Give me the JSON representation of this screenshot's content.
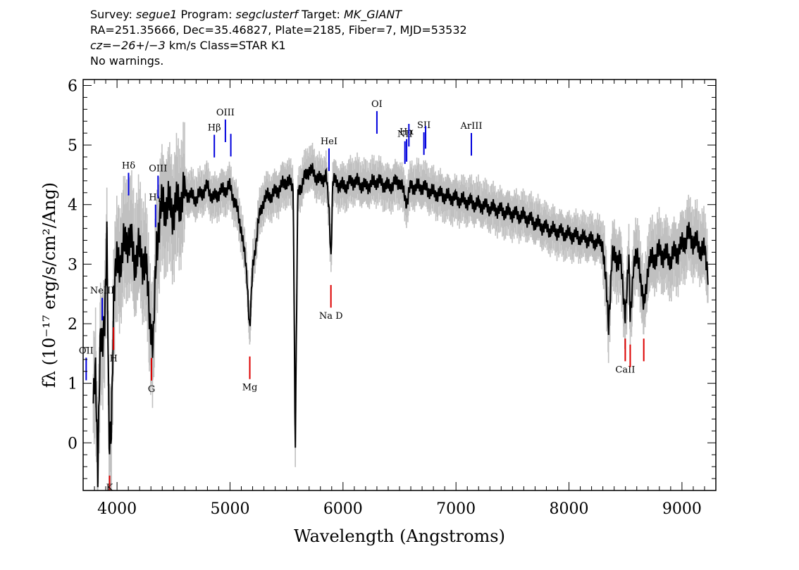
{
  "header": {
    "survey_prefix": "Survey: ",
    "survey": "segue1",
    "program_prefix": " Program: ",
    "program": "segclusterf",
    "target_prefix": " Target: ",
    "target": "MK_GIANT",
    "line2": "RA=251.35666, Dec=35.46827, Plate=2185, Fiber=7, MJD=53532",
    "cz_prefix": "cz=",
    "cz_value": "−26",
    "cz_pm": "+/−",
    "cz_err": "3",
    "cz_suffix": " km/s Class=STAR K1",
    "line4": "No warnings."
  },
  "chart_data": {
    "type": "line",
    "title": "",
    "xlabel": "Wavelength (Angstroms)",
    "ylabel": "fλ (10⁻¹⁷ erg/s/cm²/Ang)",
    "xlim": [
      3700,
      9300
    ],
    "ylim": [
      -0.8,
      6.1
    ],
    "x_ticks": [
      4000,
      5000,
      6000,
      7000,
      8000,
      9000
    ],
    "y_ticks": [
      0,
      1,
      2,
      3,
      4,
      5,
      6
    ],
    "x_minor_step": 100,
    "y_minor_step": 0.2,
    "grid": false,
    "colors": {
      "spectrum": "#000000",
      "error_band": "#c0c0c0",
      "emission": "#0000dd",
      "absorption": "#dd0000"
    },
    "series": [
      {
        "key": "smoothed-spectrum",
        "x": [
          3790,
          3810,
          3830,
          3850,
          3870,
          3890,
          3910,
          3930,
          3950,
          3970,
          4000,
          4050,
          4100,
          4150,
          4200,
          4250,
          4300,
          4320,
          4350,
          4400,
          4450,
          4500,
          4600,
          4700,
          4800,
          4850,
          4900,
          5000,
          5050,
          5100,
          5150,
          5175,
          5200,
          5250,
          5300,
          5400,
          5500,
          5560,
          5577,
          5600,
          5700,
          5800,
          5850,
          5880,
          5893,
          5910,
          6000,
          6100,
          6200,
          6300,
          6400,
          6500,
          6563,
          6600,
          6700,
          6800,
          6900,
          7000,
          7200,
          7400,
          7600,
          7800,
          8000,
          8100,
          8200,
          8300,
          8350,
          8380,
          8450,
          8498,
          8530,
          8542,
          8570,
          8620,
          8662,
          8700,
          8800,
          8900,
          9000,
          9050,
          9100,
          9150,
          9200,
          9230
        ],
        "y": [
          0.5,
          1.2,
          -0.3,
          1.6,
          1.5,
          2.2,
          3.5,
          -0.2,
          0.3,
          2.5,
          3.0,
          3.2,
          3.5,
          3.1,
          3.2,
          3.0,
          2.0,
          1.5,
          3.4,
          4.0,
          4.0,
          3.9,
          4.2,
          4.1,
          4.3,
          4.1,
          4.2,
          4.3,
          4.0,
          3.6,
          2.8,
          1.9,
          2.9,
          3.7,
          4.1,
          4.2,
          4.4,
          4.3,
          -0.2,
          4.2,
          4.6,
          4.4,
          4.5,
          3.8,
          3.1,
          4.4,
          4.3,
          4.4,
          4.3,
          4.4,
          4.3,
          4.4,
          4.05,
          4.3,
          4.3,
          4.2,
          4.15,
          4.1,
          4.0,
          3.9,
          3.8,
          3.6,
          3.5,
          3.45,
          3.4,
          3.35,
          2.0,
          3.1,
          3.1,
          2.2,
          3.0,
          2.1,
          3.0,
          3.1,
          2.2,
          3.0,
          3.2,
          3.1,
          3.3,
          3.5,
          3.4,
          3.3,
          3.2,
          2.9
        ]
      }
    ],
    "lines": [
      {
        "name": "NeIII",
        "wave": 3869,
        "kind": "emission",
        "label": "NeIII"
      },
      {
        "name": "Hdelta",
        "wave": 4102,
        "kind": "emission",
        "label": "Hδ"
      },
      {
        "name": "Hgamma",
        "wave": 4341,
        "kind": "emission",
        "label": "Hγ"
      },
      {
        "name": "OIII-4363",
        "wave": 4363,
        "kind": "emission",
        "label": "OIII"
      },
      {
        "name": "Hbeta",
        "wave": 4861,
        "kind": "emission",
        "label": "Hβ"
      },
      {
        "name": "OIII-4959",
        "wave": 4959,
        "kind": "emission",
        "label": "OIII"
      },
      {
        "name": "OIII-5007",
        "wave": 5007,
        "kind": "emission",
        "label": ""
      },
      {
        "name": "HeI",
        "wave": 5876,
        "kind": "emission",
        "label": "HeI"
      },
      {
        "name": "OI",
        "wave": 6300,
        "kind": "emission",
        "label": "OI"
      },
      {
        "name": "NII-6548",
        "wave": 6548,
        "kind": "emission",
        "label": "NII"
      },
      {
        "name": "Halpha",
        "wave": 6563,
        "kind": "emission",
        "label": "Hα"
      },
      {
        "name": "NII-6583",
        "wave": 6583,
        "kind": "emission",
        "label": ""
      },
      {
        "name": "SII-6716",
        "wave": 6716,
        "kind": "emission",
        "label": "SII"
      },
      {
        "name": "SII-6731",
        "wave": 6731,
        "kind": "emission",
        "label": ""
      },
      {
        "name": "ArIII",
        "wave": 7136,
        "kind": "emission",
        "label": "ArIII"
      },
      {
        "name": "OII",
        "wave": 3727,
        "kind": "emission",
        "label": "OII"
      },
      {
        "name": "K",
        "wave": 3934,
        "kind": "absorption",
        "label": "K"
      },
      {
        "name": "H",
        "wave": 3969,
        "kind": "absorption",
        "label": "H"
      },
      {
        "name": "G",
        "wave": 4305,
        "kind": "absorption",
        "label": "G"
      },
      {
        "name": "Mg",
        "wave": 5175,
        "kind": "absorption",
        "label": "Mg"
      },
      {
        "name": "NaD",
        "wave": 5893,
        "kind": "absorption",
        "label": "Na D"
      },
      {
        "name": "CaII-8498",
        "wave": 8498,
        "kind": "absorption",
        "label": "CaII"
      },
      {
        "name": "CaII-8542",
        "wave": 8542,
        "kind": "absorption",
        "label": ""
      },
      {
        "name": "CaII-8662",
        "wave": 8662,
        "kind": "absorption",
        "label": ""
      }
    ]
  }
}
